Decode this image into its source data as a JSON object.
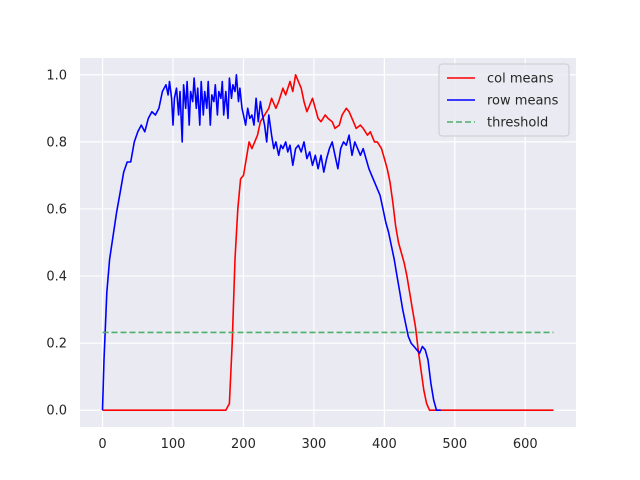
{
  "chart_data": {
    "type": "line",
    "title": "",
    "xlabel": "",
    "ylabel": "",
    "xlim": [
      -32,
      672
    ],
    "ylim": [
      -0.05,
      1.05
    ],
    "xticks": [
      0,
      100,
      200,
      300,
      400,
      500,
      600
    ],
    "yticks": [
      0.0,
      0.2,
      0.4,
      0.6,
      0.8,
      1.0
    ],
    "xtick_labels": [
      "0",
      "100",
      "200",
      "300",
      "400",
      "500",
      "600"
    ],
    "ytick_labels": [
      "0.0",
      "0.2",
      "0.4",
      "0.6",
      "0.8",
      "1.0"
    ],
    "grid": true,
    "legend_position": "top-right",
    "series": [
      {
        "name": "col means",
        "color": "#ff0000",
        "style": "solid",
        "points": [
          [
            0,
            0
          ],
          [
            100,
            0
          ],
          [
            175,
            0
          ],
          [
            180,
            0.02
          ],
          [
            184,
            0.2
          ],
          [
            188,
            0.45
          ],
          [
            192,
            0.6
          ],
          [
            196,
            0.69
          ],
          [
            200,
            0.7
          ],
          [
            204,
            0.75
          ],
          [
            208,
            0.8
          ],
          [
            212,
            0.78
          ],
          [
            216,
            0.8
          ],
          [
            220,
            0.82
          ],
          [
            224,
            0.86
          ],
          [
            230,
            0.88
          ],
          [
            236,
            0.9
          ],
          [
            240,
            0.93
          ],
          [
            246,
            0.9
          ],
          [
            250,
            0.92
          ],
          [
            256,
            0.96
          ],
          [
            260,
            0.94
          ],
          [
            266,
            0.98
          ],
          [
            270,
            0.95
          ],
          [
            274,
            1.0
          ],
          [
            278,
            0.98
          ],
          [
            282,
            0.96
          ],
          [
            286,
            0.92
          ],
          [
            290,
            0.89
          ],
          [
            294,
            0.91
          ],
          [
            298,
            0.93
          ],
          [
            302,
            0.9
          ],
          [
            306,
            0.87
          ],
          [
            310,
            0.86
          ],
          [
            316,
            0.88
          ],
          [
            320,
            0.87
          ],
          [
            326,
            0.86
          ],
          [
            330,
            0.84
          ],
          [
            336,
            0.85
          ],
          [
            340,
            0.88
          ],
          [
            346,
            0.9
          ],
          [
            350,
            0.89
          ],
          [
            356,
            0.86
          ],
          [
            360,
            0.84
          ],
          [
            366,
            0.85
          ],
          [
            370,
            0.84
          ],
          [
            376,
            0.82
          ],
          [
            380,
            0.83
          ],
          [
            386,
            0.8
          ],
          [
            390,
            0.8
          ],
          [
            396,
            0.78
          ],
          [
            400,
            0.75
          ],
          [
            404,
            0.72
          ],
          [
            408,
            0.68
          ],
          [
            412,
            0.62
          ],
          [
            416,
            0.55
          ],
          [
            420,
            0.5
          ],
          [
            424,
            0.47
          ],
          [
            428,
            0.44
          ],
          [
            432,
            0.4
          ],
          [
            436,
            0.35
          ],
          [
            440,
            0.3
          ],
          [
            444,
            0.25
          ],
          [
            448,
            0.18
          ],
          [
            452,
            0.12
          ],
          [
            456,
            0.06
          ],
          [
            460,
            0.02
          ],
          [
            464,
            0
          ],
          [
            500,
            0
          ],
          [
            600,
            0
          ],
          [
            640,
            0
          ]
        ]
      },
      {
        "name": "row means",
        "color": "#0000ff",
        "style": "solid",
        "points": [
          [
            0,
            0
          ],
          [
            2,
            0.15
          ],
          [
            4,
            0.25
          ],
          [
            6,
            0.35
          ],
          [
            10,
            0.45
          ],
          [
            15,
            0.52
          ],
          [
            20,
            0.59
          ],
          [
            25,
            0.65
          ],
          [
            30,
            0.71
          ],
          [
            35,
            0.74
          ],
          [
            40,
            0.74
          ],
          [
            45,
            0.8
          ],
          [
            50,
            0.83
          ],
          [
            55,
            0.85
          ],
          [
            60,
            0.83
          ],
          [
            65,
            0.87
          ],
          [
            70,
            0.89
          ],
          [
            75,
            0.88
          ],
          [
            80,
            0.9
          ],
          [
            85,
            0.95
          ],
          [
            90,
            0.97
          ],
          [
            93,
            0.94
          ],
          [
            95,
            0.98
          ],
          [
            98,
            0.93
          ],
          [
            100,
            0.85
          ],
          [
            102,
            0.93
          ],
          [
            105,
            0.96
          ],
          [
            108,
            0.88
          ],
          [
            110,
            0.95
          ],
          [
            113,
            0.8
          ],
          [
            115,
            0.97
          ],
          [
            118,
            0.9
          ],
          [
            120,
            0.98
          ],
          [
            123,
            0.85
          ],
          [
            125,
            0.95
          ],
          [
            128,
            0.92
          ],
          [
            130,
            0.99
          ],
          [
            133,
            0.9
          ],
          [
            135,
            0.96
          ],
          [
            138,
            0.85
          ],
          [
            140,
            0.98
          ],
          [
            143,
            0.88
          ],
          [
            145,
            0.95
          ],
          [
            148,
            0.9
          ],
          [
            150,
            0.98
          ],
          [
            153,
            0.85
          ],
          [
            155,
            0.94
          ],
          [
            158,
            0.92
          ],
          [
            160,
            0.97
          ],
          [
            163,
            0.88
          ],
          [
            165,
            0.95
          ],
          [
            168,
            0.93
          ],
          [
            170,
            0.98
          ],
          [
            172,
            0.88
          ],
          [
            175,
            0.95
          ],
          [
            178,
            0.87
          ],
          [
            180,
            0.99
          ],
          [
            183,
            0.93
          ],
          [
            185,
            0.97
          ],
          [
            188,
            0.95
          ],
          [
            190,
            1.0
          ],
          [
            193,
            0.92
          ],
          [
            195,
            0.96
          ],
          [
            198,
            0.9
          ],
          [
            200,
            0.88
          ],
          [
            203,
            0.85
          ],
          [
            206,
            0.9
          ],
          [
            209,
            0.87
          ],
          [
            212,
            0.88
          ],
          [
            215,
            0.85
          ],
          [
            218,
            0.93
          ],
          [
            221,
            0.86
          ],
          [
            224,
            0.92
          ],
          [
            227,
            0.88
          ],
          [
            230,
            0.85
          ],
          [
            233,
            0.8
          ],
          [
            236,
            0.88
          ],
          [
            240,
            0.82
          ],
          [
            243,
            0.78
          ],
          [
            246,
            0.8
          ],
          [
            250,
            0.76
          ],
          [
            253,
            0.79
          ],
          [
            256,
            0.78
          ],
          [
            260,
            0.8
          ],
          [
            263,
            0.77
          ],
          [
            266,
            0.79
          ],
          [
            270,
            0.73
          ],
          [
            274,
            0.78
          ],
          [
            278,
            0.79
          ],
          [
            282,
            0.77
          ],
          [
            286,
            0.8
          ],
          [
            290,
            0.75
          ],
          [
            294,
            0.77
          ],
          [
            298,
            0.73
          ],
          [
            302,
            0.76
          ],
          [
            306,
            0.72
          ],
          [
            310,
            0.76
          ],
          [
            314,
            0.71
          ],
          [
            318,
            0.75
          ],
          [
            322,
            0.78
          ],
          [
            326,
            0.8
          ],
          [
            330,
            0.76
          ],
          [
            334,
            0.72
          ],
          [
            338,
            0.78
          ],
          [
            342,
            0.8
          ],
          [
            346,
            0.79
          ],
          [
            350,
            0.82
          ],
          [
            354,
            0.76
          ],
          [
            358,
            0.8
          ],
          [
            362,
            0.78
          ],
          [
            366,
            0.76
          ],
          [
            370,
            0.78
          ],
          [
            374,
            0.75
          ],
          [
            378,
            0.72
          ],
          [
            382,
            0.7
          ],
          [
            386,
            0.68
          ],
          [
            390,
            0.66
          ],
          [
            394,
            0.64
          ],
          [
            398,
            0.6
          ],
          [
            402,
            0.56
          ],
          [
            406,
            0.53
          ],
          [
            410,
            0.49
          ],
          [
            414,
            0.45
          ],
          [
            418,
            0.4
          ],
          [
            422,
            0.35
          ],
          [
            426,
            0.3
          ],
          [
            430,
            0.26
          ],
          [
            434,
            0.22
          ],
          [
            438,
            0.2
          ],
          [
            442,
            0.19
          ],
          [
            446,
            0.18
          ],
          [
            450,
            0.17
          ],
          [
            454,
            0.19
          ],
          [
            458,
            0.18
          ],
          [
            462,
            0.15
          ],
          [
            466,
            0.08
          ],
          [
            470,
            0.03
          ],
          [
            474,
            0
          ],
          [
            480,
            0
          ]
        ]
      },
      {
        "name": "threshold",
        "color": "#4daf6a",
        "style": "dashed",
        "points": [
          [
            0,
            0.232
          ],
          [
            640,
            0.232
          ]
        ]
      }
    ]
  }
}
